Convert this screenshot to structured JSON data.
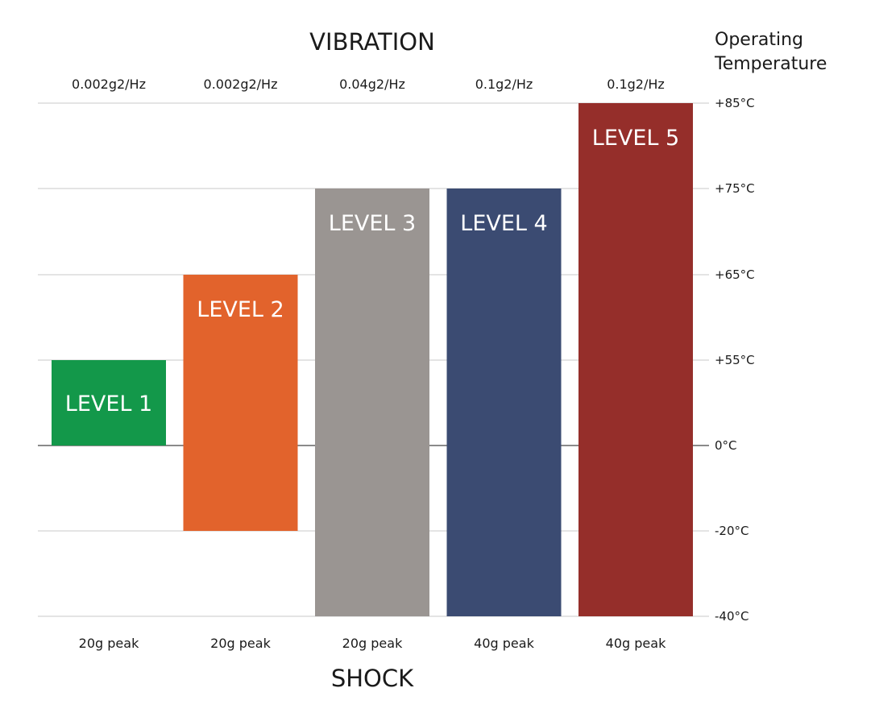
{
  "chart_data": {
    "type": "bar",
    "title": "VIBRATION",
    "bottom_title": "SHOCK",
    "y_axis_title": "Operating Temperature",
    "y_axis_side": "right",
    "y_ticks": [
      {
        "value": 85,
        "label": "+85°C"
      },
      {
        "value": 75,
        "label": "+75°C"
      },
      {
        "value": 65,
        "label": "+65°C"
      },
      {
        "value": 55,
        "label": "+55°C"
      },
      {
        "value": 0,
        "label": "0°C"
      },
      {
        "value": -20,
        "label": "-20°C"
      },
      {
        "value": -40,
        "label": "-40°C"
      }
    ],
    "grid": true,
    "bars": [
      {
        "label": "LEVEL 1",
        "min": 0,
        "max": 55,
        "vibration": "0.002g2/Hz",
        "shock": "20g peak",
        "color": "#13984a"
      },
      {
        "label": "LEVEL 2",
        "min": -20,
        "max": 65,
        "vibration": "0.002g2/Hz",
        "shock": "20g peak",
        "color": "#e2632c"
      },
      {
        "label": "LEVEL 3",
        "min": -40,
        "max": 75,
        "vibration": "0.04g2/Hz",
        "shock": "20g peak",
        "color": "#9a9592"
      },
      {
        "label": "LEVEL 4",
        "min": -40,
        "max": 75,
        "vibration": "0.1g2/Hz",
        "shock": "40g peak",
        "color": "#3b4b72"
      },
      {
        "label": "LEVEL 5",
        "min": -40,
        "max": 85,
        "vibration": "0.1g2/Hz",
        "shock": "40g peak",
        "color": "#952e2a"
      }
    ]
  }
}
